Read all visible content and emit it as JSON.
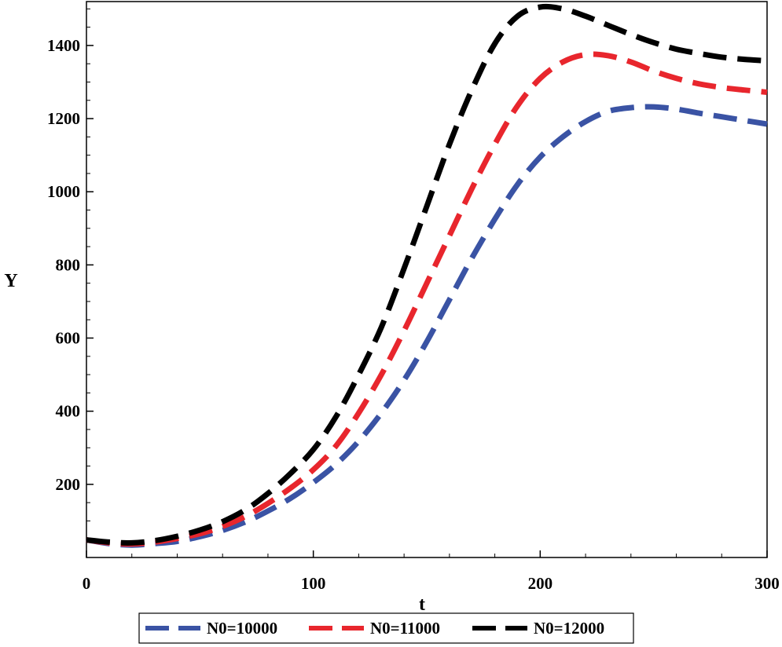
{
  "chart_data": {
    "type": "line",
    "title": "",
    "xlabel": "t",
    "ylabel": "Y",
    "xlim": [
      0,
      300
    ],
    "ylim": [
      0,
      1520
    ],
    "xticks": [
      0,
      100,
      200,
      300
    ],
    "yticks": [
      200,
      400,
      600,
      800,
      1000,
      1200,
      1400
    ],
    "grid": false,
    "legend_position": "bottom",
    "series": [
      {
        "name": "N0=10000",
        "color": "#3a53a4",
        "dash": "dashed",
        "x": [
          0,
          10,
          20,
          30,
          40,
          50,
          60,
          70,
          80,
          90,
          100,
          110,
          120,
          130,
          140,
          150,
          160,
          170,
          180,
          190,
          200,
          210,
          220,
          230,
          240,
          250,
          260,
          270,
          280,
          290,
          300
        ],
        "y": [
          48,
          38,
          34,
          38,
          44,
          57,
          74,
          97,
          127,
          162,
          205,
          255,
          318,
          395,
          485,
          590,
          705,
          820,
          925,
          1020,
          1095,
          1150,
          1192,
          1220,
          1230,
          1232,
          1226,
          1215,
          1205,
          1195,
          1185
        ]
      },
      {
        "name": "N0=11000",
        "color": "#e8262d",
        "dash": "dashed",
        "x": [
          0,
          10,
          20,
          30,
          40,
          50,
          60,
          70,
          80,
          90,
          100,
          110,
          120,
          130,
          140,
          150,
          160,
          170,
          180,
          190,
          200,
          210,
          220,
          230,
          240,
          250,
          260,
          270,
          280,
          290,
          300
        ],
        "y": [
          48,
          40,
          37,
          42,
          52,
          65,
          85,
          112,
          148,
          190,
          240,
          305,
          395,
          500,
          620,
          750,
          880,
          1010,
          1130,
          1235,
          1310,
          1355,
          1375,
          1372,
          1355,
          1330,
          1310,
          1295,
          1285,
          1278,
          1272
        ]
      },
      {
        "name": "N0=12000",
        "color": "#000000",
        "dash": "dashed",
        "x": [
          0,
          10,
          20,
          30,
          40,
          50,
          60,
          70,
          80,
          90,
          100,
          110,
          120,
          130,
          140,
          150,
          160,
          170,
          180,
          190,
          200,
          210,
          220,
          230,
          240,
          250,
          260,
          270,
          280,
          290,
          300
        ],
        "y": [
          48,
          42,
          40,
          46,
          58,
          75,
          98,
          130,
          175,
          230,
          295,
          385,
          500,
          630,
          790,
          960,
          1130,
          1280,
          1405,
          1480,
          1505,
          1500,
          1480,
          1455,
          1430,
          1408,
          1390,
          1378,
          1368,
          1362,
          1358
        ]
      }
    ]
  }
}
